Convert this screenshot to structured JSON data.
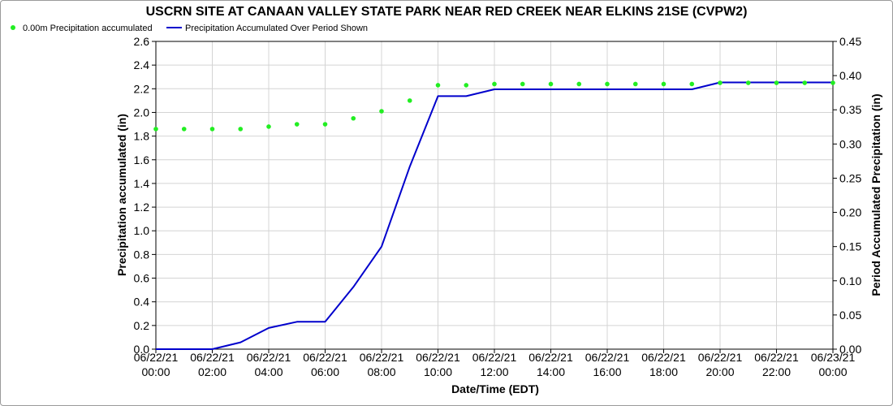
{
  "chart_data": {
    "type": "line",
    "title": "USCRN SITE AT CANAAN VALLEY STATE PARK NEAR RED CREEK NEAR ELKINS 21SE (CVPW2)",
    "xlabel": "Date/Time (EDT)",
    "ylabel_left": "Precipitation accumulated (in)",
    "ylabel_right": "Period Accumulated Precipitation (in)",
    "ylim_left": [
      0,
      2.6
    ],
    "ylim_right": [
      0,
      0.45
    ],
    "yticks_left": [
      "0.0",
      "0.2",
      "0.4",
      "0.6",
      "0.8",
      "1.0",
      "1.2",
      "1.4",
      "1.6",
      "1.8",
      "2.0",
      "2.2",
      "2.4",
      "2.6"
    ],
    "yticks_right": [
      "0.00",
      "0.05",
      "0.10",
      "0.15",
      "0.20",
      "0.25",
      "0.30",
      "0.35",
      "0.40",
      "0.45"
    ],
    "xlim_hours": [
      0,
      24
    ],
    "xticks": [
      {
        "hour": 0,
        "date": "06/22/21",
        "time": "00:00"
      },
      {
        "hour": 2,
        "date": "06/22/21",
        "time": "02:00"
      },
      {
        "hour": 4,
        "date": "06/22/21",
        "time": "04:00"
      },
      {
        "hour": 6,
        "date": "06/22/21",
        "time": "06:00"
      },
      {
        "hour": 8,
        "date": "06/22/21",
        "time": "08:00"
      },
      {
        "hour": 10,
        "date": "06/22/21",
        "time": "10:00"
      },
      {
        "hour": 12,
        "date": "06/22/21",
        "time": "12:00"
      },
      {
        "hour": 14,
        "date": "06/22/21",
        "time": "14:00"
      },
      {
        "hour": 16,
        "date": "06/22/21",
        "time": "16:00"
      },
      {
        "hour": 18,
        "date": "06/22/21",
        "time": "18:00"
      },
      {
        "hour": 20,
        "date": "06/22/21",
        "time": "20:00"
      },
      {
        "hour": 22,
        "date": "06/22/21",
        "time": "22:00"
      },
      {
        "hour": 24,
        "date": "06/23/21",
        "time": "00:00"
      }
    ],
    "grid": true,
    "legend_position": "top-left",
    "series": [
      {
        "name": "0.00m Precipitation accumulated",
        "style": "points",
        "axis": "left",
        "color": "#22ee22",
        "x": [
          0,
          1,
          2,
          3,
          4,
          5,
          6,
          7,
          8,
          9,
          10,
          11,
          12,
          13,
          14,
          15,
          16,
          17,
          18,
          19,
          20,
          21,
          22,
          23,
          24
        ],
        "y": [
          1.86,
          1.86,
          1.86,
          1.86,
          1.88,
          1.9,
          1.9,
          1.95,
          2.01,
          2.1,
          2.23,
          2.23,
          2.24,
          2.24,
          2.24,
          2.24,
          2.24,
          2.24,
          2.24,
          2.24,
          2.25,
          2.25,
          2.25,
          2.25,
          2.25
        ]
      },
      {
        "name": "Precipitation Accumulated Over Period Shown",
        "style": "line",
        "axis": "right",
        "color": "#0000cc",
        "x": [
          0,
          1,
          2,
          3,
          4,
          5,
          6,
          7,
          8,
          9,
          10,
          11,
          12,
          13,
          14,
          15,
          16,
          17,
          18,
          19,
          20,
          21,
          22,
          23,
          24
        ],
        "y": [
          0.0,
          0.0,
          0.0,
          0.01,
          0.031,
          0.04,
          0.04,
          0.091,
          0.15,
          0.267,
          0.37,
          0.37,
          0.38,
          0.38,
          0.38,
          0.38,
          0.38,
          0.38,
          0.38,
          0.38,
          0.39,
          0.39,
          0.39,
          0.39,
          0.39
        ]
      }
    ]
  }
}
